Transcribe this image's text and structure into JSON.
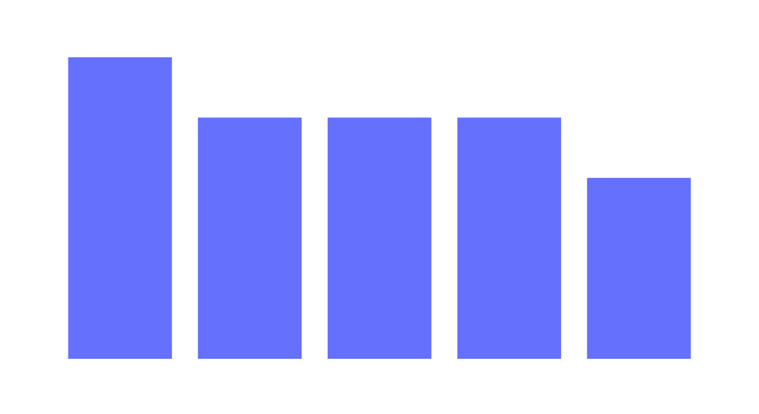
{
  "chart_data": {
    "type": "bar",
    "categories": [
      "",
      "",
      "",
      "",
      ""
    ],
    "values": [
      5,
      4,
      4,
      4,
      3
    ],
    "title": "",
    "xlabel": "",
    "ylabel": "",
    "ylim": [
      0,
      5
    ],
    "grid": false,
    "axes_visible": false,
    "legend": "none",
    "colors": {
      "bar": "#6570fc",
      "background": "#ffffff"
    }
  }
}
